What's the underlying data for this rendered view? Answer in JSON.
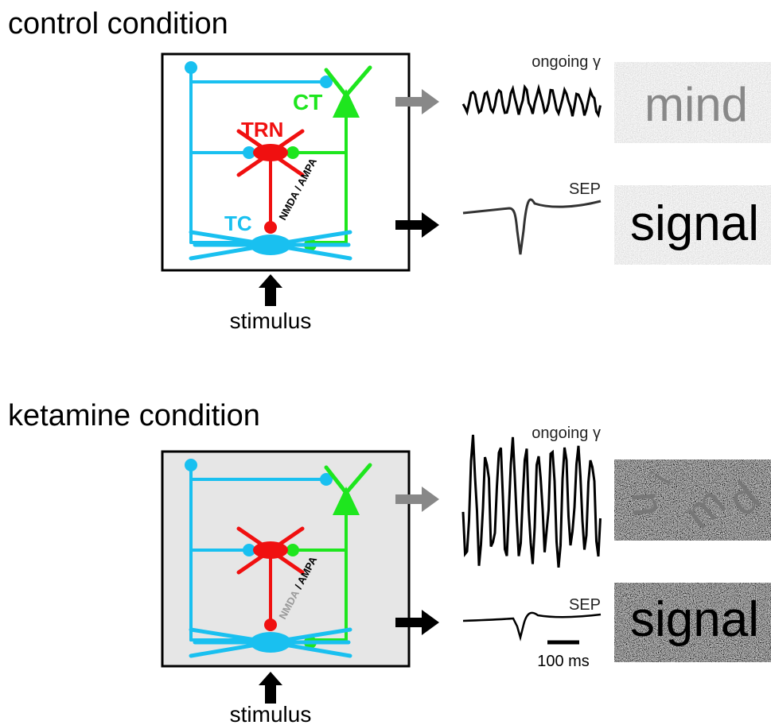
{
  "control": {
    "title": "control condition",
    "ct": "CT",
    "trn": "TRN",
    "tc": "TC",
    "receptor": "NMDA / AMPA",
    "input": "stimulus",
    "gamma_label": "ongoing γ",
    "sep_label": "SEP",
    "percepts": [
      "mind",
      "signal"
    ]
  },
  "ketamine": {
    "title": "ketamine condition",
    "receptor_blocked": "NMDA",
    "receptor_rest": "/ AMPA",
    "input": "stimulus",
    "gamma_label": "ongoing γ",
    "sep_label": "SEP",
    "scale_bar": "100 ms",
    "scrambled_letters": [
      "u",
      "i",
      "m",
      "d"
    ],
    "percepts": [
      "signal"
    ]
  }
}
